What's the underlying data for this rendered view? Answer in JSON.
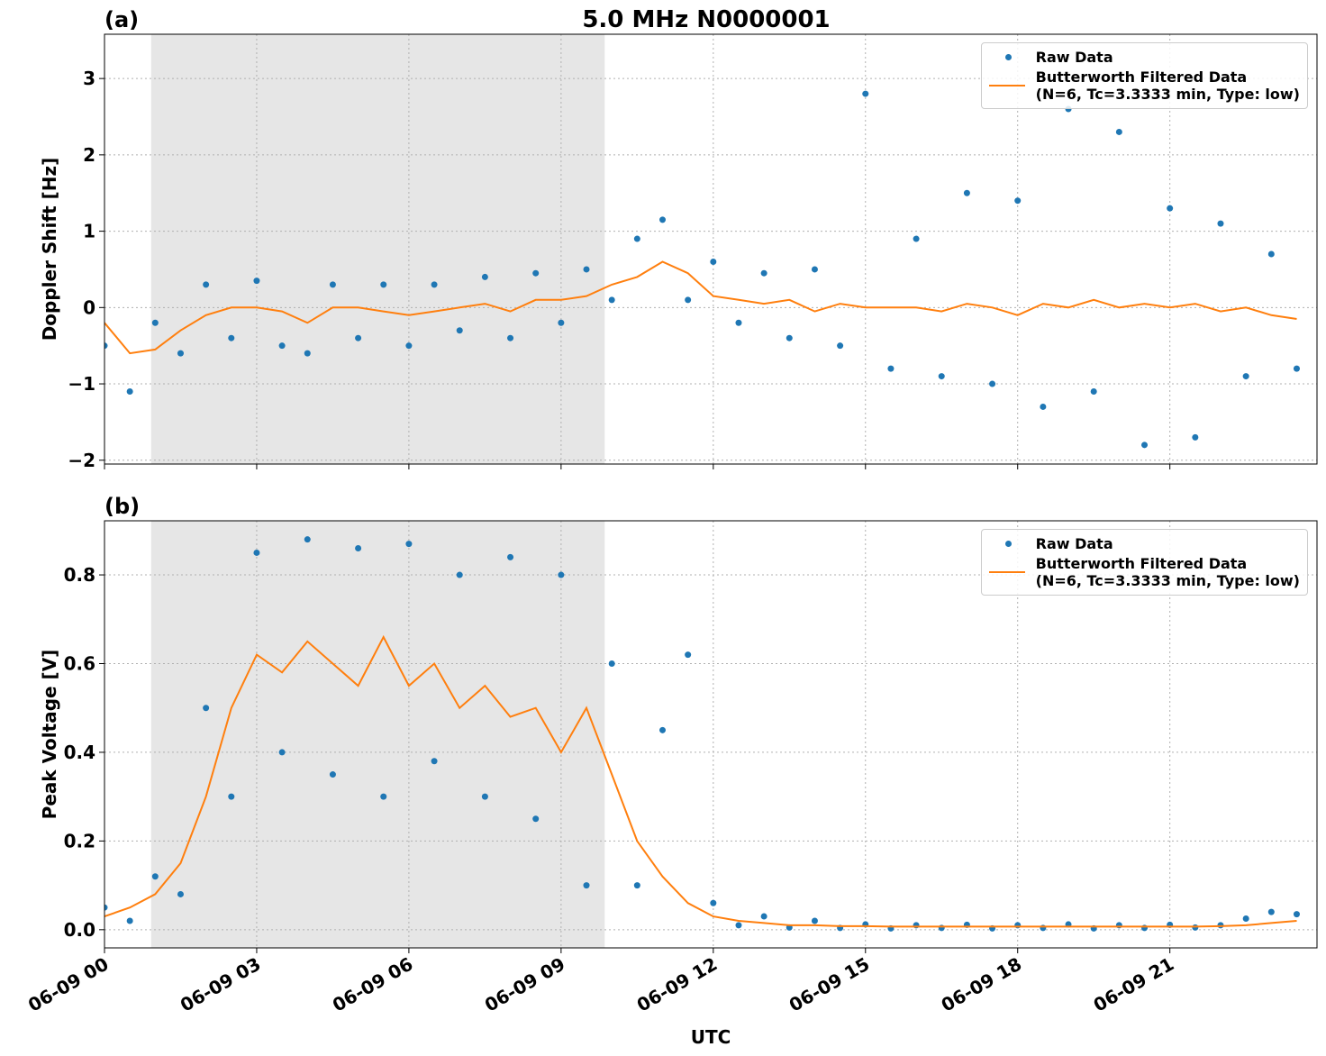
{
  "chart_data": [
    {
      "type": "scatter-line",
      "title": "5.0 MHz N0000001",
      "panel_label": "(a)",
      "y_label": "Doppler Shift [Hz]",
      "x": [
        0,
        0.5,
        1,
        1.5,
        2,
        2.5,
        3,
        3.5,
        4,
        4.5,
        5,
        5.5,
        6,
        6.5,
        7,
        7.5,
        8,
        8.5,
        9,
        9.5,
        10,
        10.5,
        11,
        11.5,
        12,
        12.5,
        13,
        13.5,
        14,
        14.5,
        15,
        15.5,
        16,
        16.5,
        17,
        17.5,
        18,
        18.5,
        19,
        19.5,
        20,
        20.5,
        21,
        21.5,
        22,
        22.5,
        23,
        23.5
      ],
      "series": [
        {
          "name": "Raw Data",
          "color": "#1f77b4",
          "kind": "scatter",
          "values": [
            -0.5,
            -1.1,
            -0.2,
            -0.6,
            0.3,
            -0.4,
            0.35,
            -0.5,
            -0.6,
            0.3,
            -0.4,
            0.3,
            -0.5,
            0.3,
            -0.3,
            0.4,
            -0.4,
            0.45,
            -0.2,
            0.5,
            0.1,
            0.9,
            1.15,
            0.1,
            0.6,
            -0.2,
            0.45,
            -0.4,
            0.5,
            -0.5,
            2.8,
            -0.8,
            0.9,
            -0.9,
            1.5,
            -1.0,
            1.4,
            -1.3,
            2.6,
            -1.1,
            2.3,
            -1.8,
            1.3,
            -1.7,
            1.1,
            -0.9,
            0.7,
            -0.8
          ]
        },
        {
          "name": "Butterworth Filtered Data\n(N=6, Tc=3.3333 min, Type: low)",
          "color": "#ff7f0e",
          "kind": "line",
          "values": [
            -0.2,
            -0.6,
            -0.55,
            -0.3,
            -0.1,
            0,
            0,
            -0.05,
            -0.2,
            0,
            0,
            -0.05,
            -0.1,
            -0.05,
            0,
            0.05,
            -0.05,
            0.1,
            0.1,
            0.15,
            0.3,
            0.4,
            0.6,
            0.45,
            0.15,
            0.1,
            0.05,
            0.1,
            -0.05,
            0.05,
            0,
            0,
            0,
            -0.05,
            0.05,
            0,
            -0.1,
            0.05,
            0,
            0.1,
            0,
            0.05,
            0,
            0.05,
            -0.05,
            0,
            -0.1,
            -0.15
          ]
        }
      ],
      "xlim": [
        0,
        23.9
      ],
      "ylim": [
        -2.05,
        3.58
      ],
      "xticks": [
        0,
        3,
        6,
        9,
        12,
        15,
        18,
        21
      ],
      "yticks": [
        {
          "value": -2,
          "label": "−2"
        },
        {
          "value": -1,
          "label": "−1"
        },
        0,
        1,
        2,
        3
      ],
      "shade": [
        0.92,
        9.86
      ],
      "grid": true,
      "legend": "upper right"
    },
    {
      "type": "scatter-line",
      "panel_label": "(b)",
      "y_label": "Peak Voltage [V]",
      "x_label": "UTC",
      "x": [
        0,
        0.5,
        1,
        1.5,
        2,
        2.5,
        3,
        3.5,
        4,
        4.5,
        5,
        5.5,
        6,
        6.5,
        7,
        7.5,
        8,
        8.5,
        9,
        9.5,
        10,
        10.5,
        11,
        11.5,
        12,
        12.5,
        13,
        13.5,
        14,
        14.5,
        15,
        15.5,
        16,
        16.5,
        17,
        17.5,
        18,
        18.5,
        19,
        19.5,
        20,
        20.5,
        21,
        21.5,
        22,
        22.5,
        23,
        23.5
      ],
      "series": [
        {
          "name": "Raw Data",
          "color": "#1f77b4",
          "kind": "scatter",
          "values": [
            0.05,
            0.02,
            0.12,
            0.08,
            0.5,
            0.3,
            0.85,
            0.4,
            0.88,
            0.35,
            0.86,
            0.3,
            0.87,
            0.38,
            0.8,
            0.3,
            0.84,
            0.25,
            0.8,
            0.1,
            0.6,
            0.1,
            0.45,
            0.62,
            0.06,
            0.01,
            0.03,
            0.005,
            0.02,
            0.004,
            0.012,
            0.003,
            0.01,
            0.004,
            0.011,
            0.003,
            0.01,
            0.004,
            0.012,
            0.003,
            0.01,
            0.004,
            0.011,
            0.005,
            0.01,
            0.025,
            0.04,
            0.035
          ]
        },
        {
          "name": "Butterworth Filtered Data\n(N=6, Tc=3.3333 min, Type: low)",
          "color": "#ff7f0e",
          "kind": "line",
          "values": [
            0.03,
            0.05,
            0.08,
            0.15,
            0.3,
            0.5,
            0.62,
            0.58,
            0.65,
            0.6,
            0.55,
            0.66,
            0.55,
            0.6,
            0.5,
            0.55,
            0.48,
            0.5,
            0.4,
            0.5,
            0.35,
            0.2,
            0.12,
            0.06,
            0.03,
            0.02,
            0.015,
            0.01,
            0.01,
            0.008,
            0.008,
            0.007,
            0.007,
            0.007,
            0.007,
            0.007,
            0.007,
            0.007,
            0.007,
            0.007,
            0.007,
            0.007,
            0.007,
            0.007,
            0.008,
            0.01,
            0.015,
            0.02
          ]
        }
      ],
      "xlim": [
        0,
        23.9
      ],
      "ylim": [
        -0.041,
        0.922
      ],
      "xticks": [
        {
          "value": 0,
          "label": "06-09 00"
        },
        {
          "value": 3,
          "label": "06-09 03"
        },
        {
          "value": 6,
          "label": "06-09 06"
        },
        {
          "value": 9,
          "label": "06-09 09"
        },
        {
          "value": 12,
          "label": "06-09 12"
        },
        {
          "value": 15,
          "label": "06-09 15"
        },
        {
          "value": 18,
          "label": "06-09 18"
        },
        {
          "value": 21,
          "label": "06-09 21"
        }
      ],
      "yticks": [
        {
          "value": 0,
          "label": "0.0"
        },
        0.2,
        0.4,
        0.6,
        0.8
      ],
      "shade": [
        0.92,
        9.86
      ],
      "grid": true,
      "legend": "upper right"
    }
  ]
}
